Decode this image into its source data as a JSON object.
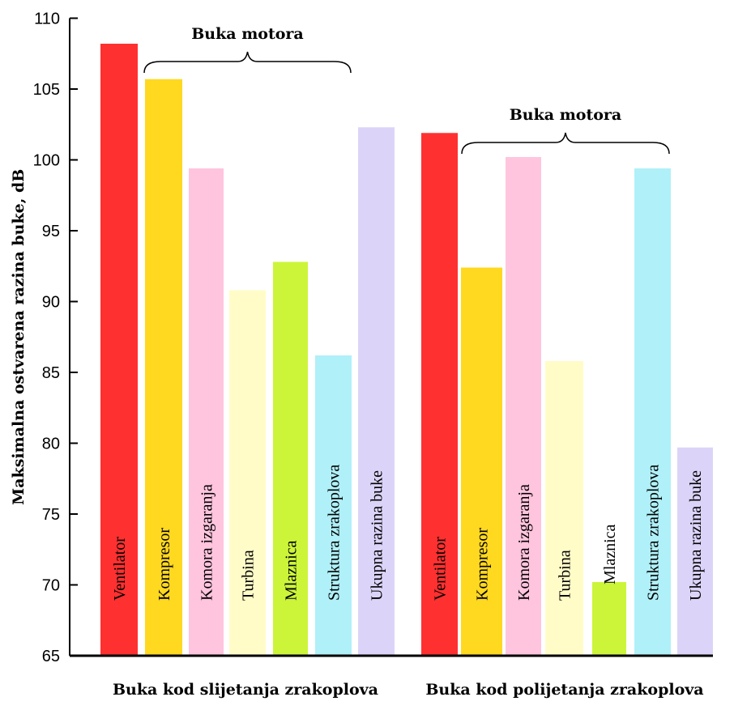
{
  "chart_data": {
    "type": "bar",
    "ylabel": "Maksimalna ostvarena razina buke, dB",
    "ylim": [
      65,
      110
    ],
    "yticks": [
      65,
      70,
      75,
      80,
      85,
      90,
      95,
      100,
      105,
      110
    ],
    "grid": false,
    "legend": "none",
    "groups": [
      {
        "name": "Buka kod slijetanja zrakoplova",
        "brace_label": "Buka motora",
        "bars": [
          {
            "label": "Ventilator",
            "value": 108.2,
            "color": "#ff3030"
          },
          {
            "label": "Kompresor",
            "value": 105.7,
            "color": "#ffd820"
          },
          {
            "label": "Komora izgaranja",
            "value": 99.4,
            "color": "#ffc4de"
          },
          {
            "label": "Turbina",
            "value": 90.8,
            "color": "#fffcc8"
          },
          {
            "label": "Mlaznica",
            "value": 92.8,
            "color": "#ccf53a"
          },
          {
            "label": "Struktura zrakoplova",
            "value": 86.2,
            "color": "#b0f0f8"
          },
          {
            "label": "Ukupna razina buke",
            "value": 102.3,
            "color": "#dcd4f8"
          }
        ]
      },
      {
        "name": "Buka kod polijetanja zrakoplova",
        "brace_label": "Buka motora",
        "bars": [
          {
            "label": "Ventilator",
            "value": 101.9,
            "color": "#ff3030"
          },
          {
            "label": "Kompresor",
            "value": 92.4,
            "color": "#ffd820"
          },
          {
            "label": "Komora izgaranja",
            "value": 100.2,
            "color": "#ffc4de"
          },
          {
            "label": "Turbina",
            "value": 85.8,
            "color": "#fffcc8"
          },
          {
            "label": "Mlaznica",
            "value": 70.2,
            "color": "#ccf53a"
          },
          {
            "label": "Struktura zrakoplova",
            "value": 99.4,
            "color": "#b0f0f8"
          },
          {
            "label": "Ukupna razina buke",
            "value": 79.7,
            "color": "#dcd4f8"
          }
        ]
      }
    ]
  }
}
